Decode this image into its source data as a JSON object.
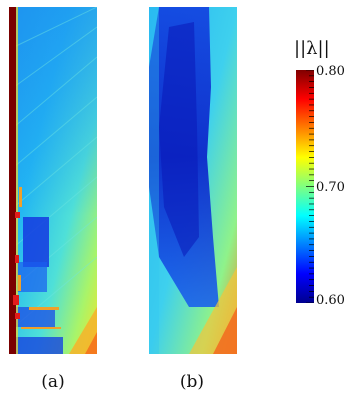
{
  "chart_data": {
    "type": "heatmap",
    "panels": [
      {
        "label": "(a)"
      },
      {
        "label": "(b)"
      }
    ],
    "colorbar": {
      "title": "||λ||",
      "range": [
        0.6,
        0.8
      ],
      "ticks": [
        "0.80",
        "0.70",
        "0.60"
      ],
      "colormap": "jet",
      "colors": [
        "#00008f",
        "#0000ff",
        "#00ffff",
        "#ffff00",
        "#ff0000",
        "#800000"
      ]
    }
  }
}
